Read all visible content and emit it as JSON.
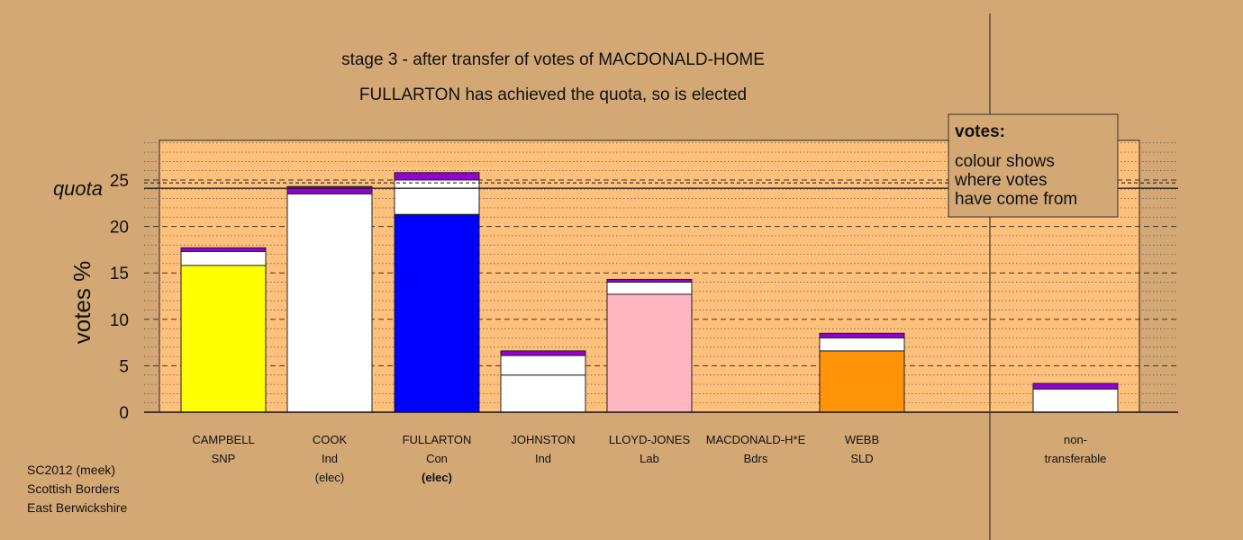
{
  "chart_data": {
    "type": "bar",
    "stacked": true,
    "title": "stage 3 - after transfer of votes of MACDONALD-HOME",
    "subtitle": "FULLARTON has achieved the quota, so is elected",
    "ylabel": "votes %",
    "xlabel": "",
    "ylim": [
      0,
      30
    ],
    "yticks": [
      0,
      5,
      10,
      15,
      20,
      25
    ],
    "quota": 24.4,
    "quota_label": "quota",
    "grid": true,
    "legend": {
      "title": "votes:",
      "lines": [
        "colour shows",
        "where votes",
        "have come from"
      ]
    },
    "categories": [
      {
        "name": "CAMPBELL",
        "party": "SNP",
        "note": "",
        "note_bold": false,
        "segments": [
          {
            "value": 15.8,
            "color": "#ffff00"
          },
          {
            "value": 1.5,
            "color": "#ffffff"
          },
          {
            "value": 0.4,
            "color": "#9400d3"
          }
        ]
      },
      {
        "name": "COOK",
        "party": "Ind",
        "note": "(elec)",
        "note_bold": false,
        "segments": [
          {
            "value": 23.5,
            "color": "#ffffff"
          },
          {
            "value": 0.8,
            "color": "#9400d3"
          }
        ]
      },
      {
        "name": "FULLARTON",
        "party": "Con",
        "note": "(elec)",
        "note_bold": true,
        "segments": [
          {
            "value": 21.3,
            "color": "#0000ff"
          },
          {
            "value": 3.7,
            "color": "#ffffff"
          },
          {
            "value": 0.8,
            "color": "#9400d3"
          }
        ]
      },
      {
        "name": "JOHNSTON",
        "party": "Ind",
        "note": "",
        "note_bold": false,
        "segments": [
          {
            "value": 4.0,
            "color": "#ffffff"
          },
          {
            "value": 2.1,
            "color": "#ffffff"
          },
          {
            "value": 0.5,
            "color": "#9400d3"
          }
        ]
      },
      {
        "name": "LLOYD-JONES",
        "party": "Lab",
        "note": "",
        "note_bold": false,
        "segments": [
          {
            "value": 12.7,
            "color": "#ffb6c1"
          },
          {
            "value": 1.3,
            "color": "#ffffff"
          },
          {
            "value": 0.3,
            "color": "#9400d3"
          }
        ]
      },
      {
        "name": "MACDONALD-H*E",
        "party": "Bdrs",
        "note": "",
        "note_bold": false,
        "segments": []
      },
      {
        "name": "WEBB",
        "party": "SLD",
        "note": "",
        "note_bold": false,
        "segments": [
          {
            "value": 6.6,
            "color": "#ff9408"
          },
          {
            "value": 1.4,
            "color": "#ffffff"
          },
          {
            "value": 0.5,
            "color": "#9400d3"
          }
        ]
      },
      {
        "name": "non-",
        "party": "transferable",
        "note": "",
        "note_bold": false,
        "segments": [
          {
            "value": 2.5,
            "color": "#ffffff"
          },
          {
            "value": 0.6,
            "color": "#9400d3"
          }
        ]
      }
    ]
  },
  "footer": {
    "line1": "SC2012 (meek)",
    "line2": "Scottish Borders",
    "line3": "East Berwickshire"
  }
}
